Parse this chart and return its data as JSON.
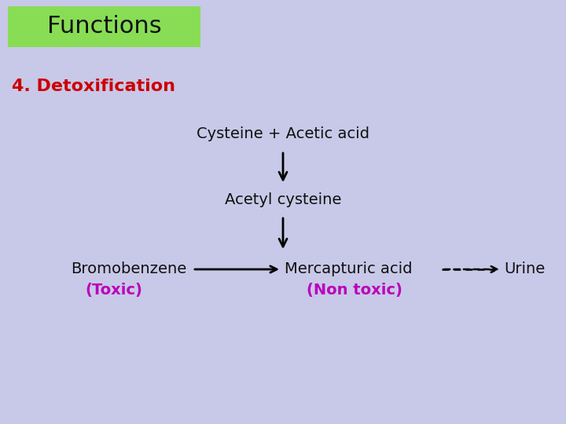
{
  "bg_color": "#c8c8e8",
  "title_box_color": "#88dd55",
  "title_text": "Functions",
  "title_text_color": "#111111",
  "heading_text": "4. Detoxification",
  "heading_color": "#cc0000",
  "label1": "Cysteine + Acetic acid",
  "label2": "Acetyl cysteine",
  "label3": "Bromobenzene",
  "label3b": "(Toxic)",
  "label4": "Mercapturic acid",
  "label4b": "(Non toxic)",
  "label5": "Urine",
  "text_color": "#111111",
  "purple_color": "#bb00bb",
  "font_size_title": 22,
  "font_size_heading": 16,
  "font_size_body": 14
}
